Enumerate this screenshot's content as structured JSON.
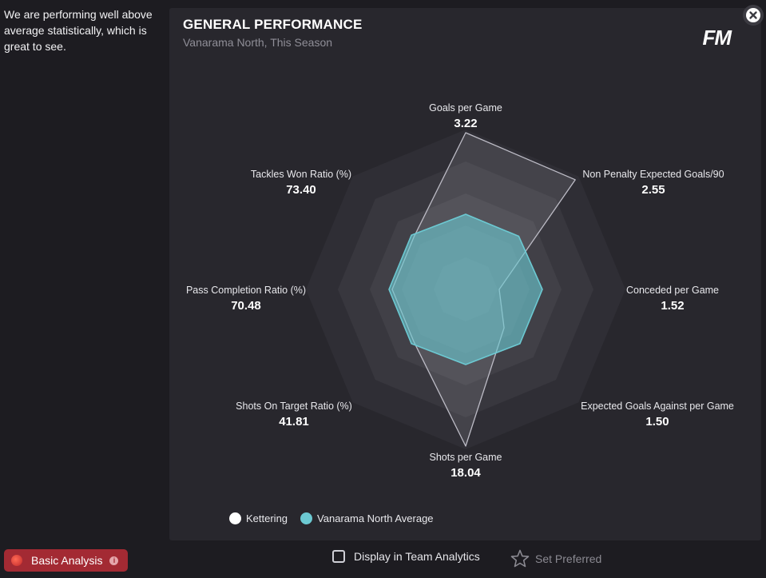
{
  "summary": {
    "text": "We are performing well above average statistically, which is great to see."
  },
  "panel": {
    "title": "GENERAL PERFORMANCE",
    "subtitle": "Vanarama North, This Season",
    "logo": "FM"
  },
  "controls": {
    "basic_analysis_label": "Basic Analysis",
    "display_team_analytics_label": "Display in Team Analytics",
    "set_preferred_label": "Set Preferred"
  },
  "icons": {
    "close": "close-icon",
    "info": "info-icon",
    "star": "star-icon",
    "checkbox": "checkbox-icon"
  },
  "colors": {
    "team": "#ffffff",
    "team_fill": "rgba(220,220,230,0.12)",
    "average": "#6cc9d2",
    "average_fill": "rgba(108,201,210,0.62)",
    "accent_red": "#a32a33"
  },
  "chart_data": {
    "type": "radar",
    "title": "GENERAL PERFORMANCE",
    "subtitle": "Vanarama North, This Season",
    "axes": [
      {
        "label": "Goals per Game",
        "value": "3.22"
      },
      {
        "label": "Non Penalty Expected Goals/90",
        "value": "2.55"
      },
      {
        "label": "Conceded per Game",
        "value": "1.52"
      },
      {
        "label": "Expected Goals Against per Game",
        "value": "1.50"
      },
      {
        "label": "Shots per Game",
        "value": "18.04"
      },
      {
        "label": "Shots On Target Ratio (%)",
        "value": "41.81"
      },
      {
        "label": "Pass Completion Ratio (%)",
        "value": "70.48"
      },
      {
        "label": "Tackles Won Ratio (%)",
        "value": "73.40"
      }
    ],
    "scale": {
      "min": 0,
      "max": 1,
      "rings": 5
    },
    "series": [
      {
        "name": "Kettering",
        "values": [
          0.98,
          0.97,
          0.21,
          0.34,
          0.98,
          0.46,
          0.46,
          0.46
        ]
      },
      {
        "name": "Vanarama North Average",
        "values": [
          0.47,
          0.47,
          0.48,
          0.48,
          0.47,
          0.48,
          0.48,
          0.48
        ]
      }
    ],
    "legend": [
      "Kettering",
      "Vanarama North Average"
    ]
  }
}
